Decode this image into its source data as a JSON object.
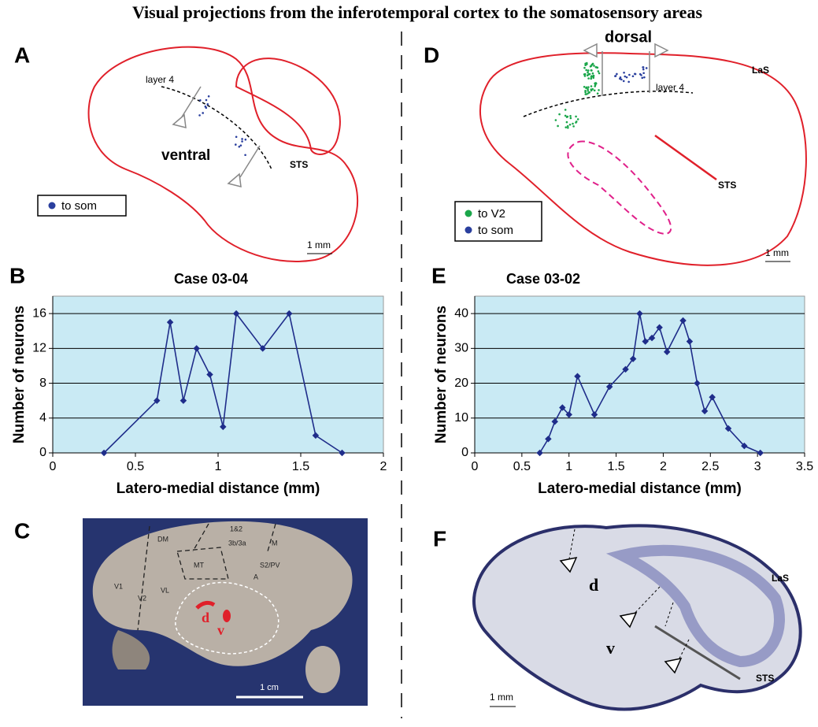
{
  "title": "Visual projections from the inferotemporal cortex to the somatosensory areas",
  "panel_a": {
    "letter": "A",
    "layer": "layer 4",
    "region": "ventral",
    "sulcus": "STS",
    "legend": [
      "to som"
    ],
    "scale": "1 mm"
  },
  "panel_d": {
    "letter": "D",
    "region": "dorsal",
    "sulcus_top": "LaS",
    "layer": "layer 4",
    "sulcus": "STS",
    "legend": [
      "to V2",
      "to som"
    ],
    "scale": "1 mm"
  },
  "panel_c": {
    "letter": "C",
    "areas": [
      "DM",
      "V1",
      "V2",
      "VL",
      "MT",
      "1&2",
      "3b/3a",
      "M",
      "S2/PV",
      "A"
    ],
    "sites": [
      "d",
      "v"
    ],
    "scale": "1 cm"
  },
  "panel_f": {
    "letter": "F",
    "sites": [
      "d",
      "v"
    ],
    "sulci": [
      "LaS",
      "STS"
    ],
    "scale": "1 mm"
  },
  "chart_data": [
    {
      "type": "line",
      "panel": "B",
      "title": "Case 03-04",
      "x_label": "Latero-medial distance (mm)",
      "y_label": "Number of neurons",
      "color": "#1f2d8a",
      "background": "#c9eaf4",
      "grid": true,
      "x": [
        0.31,
        0.63,
        0.71,
        0.79,
        0.87,
        0.95,
        1.03,
        1.11,
        1.27,
        1.43,
        1.59,
        1.75
      ],
      "values": [
        0,
        6,
        15,
        6,
        12,
        9,
        3,
        16,
        12,
        16,
        2,
        0
      ],
      "xlim": [
        0,
        2
      ],
      "xticks": [
        0,
        0.5,
        1,
        1.5,
        2
      ],
      "ylim": [
        0,
        18
      ],
      "yticks": [
        0,
        4,
        8,
        12,
        16
      ]
    },
    {
      "type": "line",
      "panel": "E",
      "title": "Case 03-02",
      "x_label": "Latero-medial distance (mm)",
      "y_label": "Number of neurons",
      "color": "#1f2d8a",
      "background": "#c9eaf4",
      "grid": true,
      "x": [
        0.69,
        0.78,
        0.85,
        0.93,
        1.0,
        1.09,
        1.27,
        1.43,
        1.6,
        1.68,
        1.75,
        1.81,
        1.88,
        1.96,
        2.04,
        2.21,
        2.28,
        2.36,
        2.44,
        2.52,
        2.69,
        2.86,
        3.03
      ],
      "values": [
        0,
        4,
        9,
        13,
        11,
        22,
        11,
        19,
        24,
        27,
        40,
        32,
        33,
        36,
        29,
        38,
        32,
        20,
        12,
        16,
        7,
        2,
        0
      ],
      "xlim": [
        0,
        3.5
      ],
      "xticks": [
        0,
        0.5,
        1,
        1.5,
        2,
        2.5,
        3,
        3.5
      ],
      "ylim": [
        0,
        45
      ],
      "yticks": [
        0,
        10,
        20,
        30,
        40
      ]
    }
  ]
}
